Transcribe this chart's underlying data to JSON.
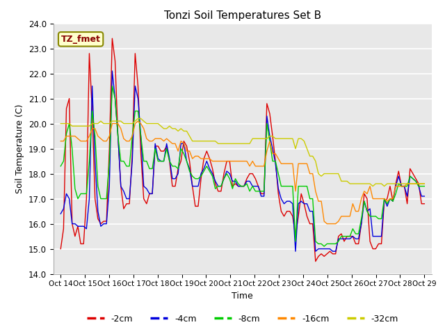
{
  "title": "Tonzi Soil Temperatures Set B",
  "xlabel": "Time",
  "ylabel": "Soil Temperature (C)",
  "ylim": [
    14.0,
    24.0
  ],
  "yticks": [
    14.0,
    15.0,
    16.0,
    17.0,
    18.0,
    19.0,
    20.0,
    21.0,
    22.0,
    23.0,
    24.0
  ],
  "colors": {
    "-2cm": "#dd0000",
    "-4cm": "#0000dd",
    "-8cm": "#00cc00",
    "-16cm": "#ff8800",
    "-32cm": "#cccc00"
  },
  "legend_label": "TZ_fmet",
  "legend_box_facecolor": "#ffffcc",
  "legend_box_edgecolor": "#888800",
  "background_color": "#e8e8e8",
  "x_tick_labels": [
    "Oct 14",
    "Oct 15",
    "Oct 16",
    "Oct 17",
    "Oct 18",
    "Oct 19",
    "Oct 20",
    "Oct 21",
    "Oct 22",
    "Oct 23",
    "Oct 24",
    "Oct 25",
    "Oct 26",
    "Oct 27",
    "Oct 28",
    "Oct 29"
  ],
  "n_days": 16,
  "pts_per_day": 8,
  "series_2cm": [
    15.0,
    15.8,
    20.6,
    21.0,
    16.0,
    15.5,
    15.9,
    15.2,
    15.2,
    17.0,
    22.8,
    20.5,
    17.0,
    16.2,
    16.0,
    16.1,
    16.1,
    19.0,
    23.4,
    22.5,
    19.5,
    17.5,
    16.6,
    16.8,
    16.8,
    18.8,
    22.8,
    21.5,
    18.8,
    17.0,
    16.8,
    17.2,
    17.2,
    19.1,
    19.1,
    18.9,
    18.9,
    19.1,
    18.5,
    17.5,
    17.5,
    18.2,
    18.5,
    19.3,
    19.1,
    18.5,
    17.5,
    16.7,
    16.7,
    17.8,
    18.6,
    18.9,
    18.6,
    18.2,
    17.6,
    17.3,
    17.3,
    18.0,
    18.5,
    18.5,
    17.5,
    17.6,
    17.5,
    17.5,
    17.5,
    17.8,
    18.0,
    18.0,
    17.8,
    17.5,
    17.2,
    17.2,
    20.8,
    20.4,
    19.5,
    18.5,
    17.2,
    16.5,
    16.3,
    16.5,
    16.5,
    16.3,
    15.5,
    16.3,
    17.2,
    16.8,
    16.3,
    16.0,
    16.0,
    14.5,
    14.7,
    14.8,
    14.7,
    14.8,
    14.9,
    14.8,
    14.8,
    15.5,
    15.6,
    15.3,
    15.5,
    15.5,
    15.5,
    15.2,
    15.2,
    16.0,
    17.2,
    17.0,
    15.3,
    15.0,
    15.0,
    15.2,
    15.2,
    16.9,
    17.0,
    17.5,
    16.9,
    17.6,
    18.1,
    17.5,
    17.5,
    16.8,
    18.2,
    18.0,
    17.8,
    17.6,
    16.8,
    16.8
  ],
  "series_4cm": [
    16.4,
    16.6,
    17.2,
    17.0,
    16.0,
    16.0,
    15.9,
    15.9,
    15.9,
    15.8,
    17.0,
    21.5,
    18.5,
    16.5,
    15.9,
    16.0,
    16.0,
    17.5,
    22.1,
    21.0,
    19.5,
    17.5,
    17.3,
    17.0,
    17.0,
    18.5,
    21.5,
    21.0,
    19.5,
    17.5,
    17.4,
    17.2,
    17.2,
    19.2,
    18.6,
    18.5,
    18.5,
    19.2,
    18.6,
    17.8,
    17.8,
    18.0,
    19.2,
    19.2,
    18.5,
    18.2,
    17.5,
    17.5,
    17.5,
    18.0,
    18.2,
    18.5,
    18.2,
    18.0,
    17.7,
    17.5,
    17.5,
    17.8,
    18.1,
    18.0,
    17.7,
    17.7,
    17.5,
    17.5,
    17.5,
    17.7,
    17.7,
    17.5,
    17.5,
    17.5,
    17.1,
    17.1,
    20.3,
    19.5,
    19.0,
    18.4,
    17.4,
    17.0,
    16.8,
    16.9,
    16.9,
    16.8,
    14.9,
    16.8,
    16.9,
    16.8,
    16.8,
    16.5,
    16.5,
    14.9,
    15.0,
    15.0,
    15.0,
    15.0,
    15.0,
    14.9,
    14.9,
    15.4,
    15.4,
    15.4,
    15.4,
    15.4,
    15.5,
    15.4,
    15.4,
    16.0,
    16.9,
    16.5,
    16.6,
    15.5,
    15.5,
    15.5,
    15.5,
    17.0,
    16.7,
    17.0,
    16.9,
    17.5,
    17.9,
    17.5,
    17.5,
    17.1,
    17.9,
    17.8,
    17.7,
    17.5,
    17.1,
    17.1
  ],
  "series_8cm": [
    18.3,
    18.5,
    19.6,
    20.0,
    19.0,
    17.4,
    17.0,
    17.2,
    17.2,
    17.2,
    18.5,
    20.5,
    19.5,
    17.5,
    17.0,
    17.0,
    17.0,
    18.5,
    21.5,
    21.0,
    19.5,
    18.5,
    18.5,
    18.3,
    18.3,
    19.5,
    20.5,
    20.5,
    19.5,
    18.5,
    18.5,
    18.2,
    18.2,
    19.0,
    18.5,
    18.5,
    18.5,
    19.0,
    18.5,
    18.3,
    18.3,
    18.2,
    19.0,
    18.8,
    18.5,
    18.1,
    17.9,
    17.8,
    17.8,
    17.9,
    18.1,
    18.3,
    18.1,
    17.9,
    17.4,
    17.5,
    17.5,
    17.8,
    18.0,
    17.8,
    17.4,
    17.8,
    17.6,
    17.5,
    17.5,
    17.6,
    17.3,
    17.5,
    17.3,
    17.3,
    17.3,
    17.3,
    20.0,
    19.3,
    18.5,
    18.5,
    18.0,
    17.5,
    17.5,
    17.5,
    17.5,
    17.5,
    15.3,
    17.5,
    17.5,
    17.5,
    17.5,
    17.0,
    17.0,
    15.3,
    15.2,
    15.2,
    15.1,
    15.2,
    15.2,
    15.2,
    15.2,
    15.3,
    15.5,
    15.5,
    15.5,
    15.5,
    15.8,
    15.6,
    15.6,
    16.2,
    16.9,
    16.5,
    16.3,
    16.3,
    16.3,
    16.2,
    16.2,
    17.0,
    16.8,
    17.0,
    16.9,
    17.2,
    17.6,
    17.5,
    17.5,
    17.5,
    17.9,
    17.8,
    17.7,
    17.5,
    17.5,
    17.5
  ],
  "series_16cm": [
    19.3,
    19.3,
    19.5,
    19.5,
    19.5,
    19.5,
    19.4,
    19.3,
    19.3,
    19.3,
    19.5,
    19.8,
    19.8,
    19.5,
    19.4,
    19.3,
    19.3,
    19.5,
    20.0,
    20.0,
    20.0,
    19.8,
    19.4,
    19.3,
    19.3,
    19.5,
    20.0,
    20.1,
    20.0,
    19.8,
    19.4,
    19.3,
    19.3,
    19.4,
    19.4,
    19.4,
    19.3,
    19.4,
    19.3,
    19.2,
    19.2,
    18.9,
    19.3,
    19.2,
    18.9,
    18.9,
    18.6,
    18.7,
    18.7,
    18.6,
    18.6,
    18.6,
    18.6,
    18.5,
    18.5,
    18.5,
    18.5,
    18.5,
    18.5,
    18.5,
    18.5,
    18.5,
    18.5,
    18.5,
    18.5,
    18.5,
    18.3,
    18.5,
    18.3,
    18.3,
    18.3,
    18.3,
    18.9,
    19.3,
    18.8,
    18.8,
    18.6,
    18.4,
    18.4,
    18.4,
    18.4,
    18.4,
    17.3,
    18.4,
    18.4,
    18.4,
    18.4,
    18.0,
    18.0,
    17.3,
    16.9,
    16.9,
    16.1,
    16.0,
    16.0,
    16.0,
    16.0,
    16.1,
    16.3,
    16.3,
    16.3,
    16.3,
    16.8,
    16.5,
    16.5,
    17.0,
    17.3,
    17.2,
    17.5,
    17.0,
    17.0,
    17.0,
    17.0,
    17.0,
    16.9,
    17.0,
    17.0,
    17.5,
    17.5,
    17.5,
    17.5,
    17.6,
    17.6,
    17.6,
    17.6,
    17.6,
    17.6,
    17.6
  ],
  "series_32cm": [
    20.0,
    20.0,
    20.0,
    20.0,
    19.9,
    19.9,
    19.9,
    19.9,
    19.9,
    19.9,
    19.9,
    20.0,
    20.0,
    20.0,
    20.1,
    20.0,
    20.0,
    20.0,
    20.1,
    20.1,
    20.1,
    20.1,
    20.0,
    20.0,
    20.0,
    20.0,
    20.1,
    20.2,
    20.2,
    20.1,
    20.0,
    20.0,
    20.0,
    20.0,
    20.0,
    19.9,
    19.8,
    19.8,
    19.9,
    19.8,
    19.8,
    19.7,
    19.8,
    19.7,
    19.7,
    19.5,
    19.3,
    19.3,
    19.3,
    19.3,
    19.3,
    19.3,
    19.3,
    19.3,
    19.3,
    19.2,
    19.2,
    19.2,
    19.2,
    19.2,
    19.2,
    19.2,
    19.2,
    19.2,
    19.2,
    19.2,
    19.2,
    19.4,
    19.4,
    19.4,
    19.4,
    19.4,
    19.4,
    19.5,
    19.5,
    19.4,
    19.4,
    19.4,
    19.4,
    19.4,
    19.4,
    19.4,
    19.0,
    19.4,
    19.4,
    19.3,
    19.0,
    18.7,
    18.7,
    18.5,
    18.0,
    17.9,
    18.0,
    18.0,
    18.0,
    18.0,
    18.0,
    18.0,
    17.7,
    17.7,
    17.7,
    17.6,
    17.6,
    17.6,
    17.6,
    17.6,
    17.6,
    17.6,
    17.6,
    17.5,
    17.6,
    17.6,
    17.6,
    17.5,
    17.6,
    17.6,
    17.6,
    17.6,
    17.6,
    17.6,
    17.6,
    17.6,
    17.6,
    17.6,
    17.6,
    17.6,
    17.6,
    17.6
  ]
}
